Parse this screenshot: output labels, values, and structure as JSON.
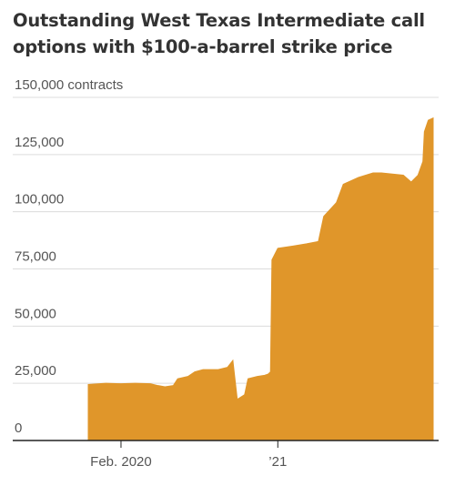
{
  "chart_data": {
    "type": "area",
    "title": "Outstanding West Texas Intermediate call options with $100-a-barrel strike price",
    "unit_label": "150,000 contracts",
    "color": "#e0962a",
    "grid": true,
    "ylim": [
      0,
      150000
    ],
    "y_ticks": [
      {
        "value": 150000,
        "label": "150,000 contracts"
      },
      {
        "value": 125000,
        "label": "125,000"
      },
      {
        "value": 100000,
        "label": "100,000"
      },
      {
        "value": 75000,
        "label": "75,000"
      },
      {
        "value": 50000,
        "label": "50,000"
      },
      {
        "value": 25000,
        "label": "25,000"
      },
      {
        "value": 0,
        "label": "0"
      }
    ],
    "x_range": [
      "2019-12-10",
      "2021-11-15"
    ],
    "x_ticks": [
      {
        "date": "2020-02-15",
        "label": "Feb. 2020"
      },
      {
        "date": "2021-01-01",
        "label": "’21"
      }
    ],
    "points": [
      [
        "2019-12-10",
        24500
      ],
      [
        "2020-01-15",
        25000
      ],
      [
        "2020-02-15",
        24800
      ],
      [
        "2020-03-15",
        25000
      ],
      [
        "2020-04-15",
        24800
      ],
      [
        "2020-05-01",
        24000
      ],
      [
        "2020-05-15",
        23500
      ],
      [
        "2020-06-01",
        24000
      ],
      [
        "2020-06-10",
        27000
      ],
      [
        "2020-07-01",
        28000
      ],
      [
        "2020-07-15",
        30000
      ],
      [
        "2020-08-01",
        31000
      ],
      [
        "2020-09-01",
        31000
      ],
      [
        "2020-09-20",
        32000
      ],
      [
        "2020-10-01",
        35000
      ],
      [
        "2020-10-10",
        18000
      ],
      [
        "2020-10-25",
        20000
      ],
      [
        "2020-11-01",
        27000
      ],
      [
        "2020-11-20",
        28000
      ],
      [
        "2020-12-05",
        28500
      ],
      [
        "2020-12-12",
        29000
      ],
      [
        "2020-12-17",
        30000
      ],
      [
        "2020-12-20",
        79000
      ],
      [
        "2021-01-01",
        84000
      ],
      [
        "2021-02-01",
        85000
      ],
      [
        "2021-03-01",
        86000
      ],
      [
        "2021-03-25",
        87000
      ],
      [
        "2021-04-05",
        98000
      ],
      [
        "2021-05-01",
        104000
      ],
      [
        "2021-05-15",
        112000
      ],
      [
        "2021-06-15",
        115000
      ],
      [
        "2021-07-15",
        117000
      ],
      [
        "2021-08-01",
        117000
      ],
      [
        "2021-09-15",
        116000
      ],
      [
        "2021-10-01",
        113000
      ],
      [
        "2021-10-15",
        116000
      ],
      [
        "2021-10-25",
        122000
      ],
      [
        "2021-10-28",
        135000
      ],
      [
        "2021-11-05",
        140000
      ],
      [
        "2021-11-15",
        141000
      ]
    ]
  }
}
